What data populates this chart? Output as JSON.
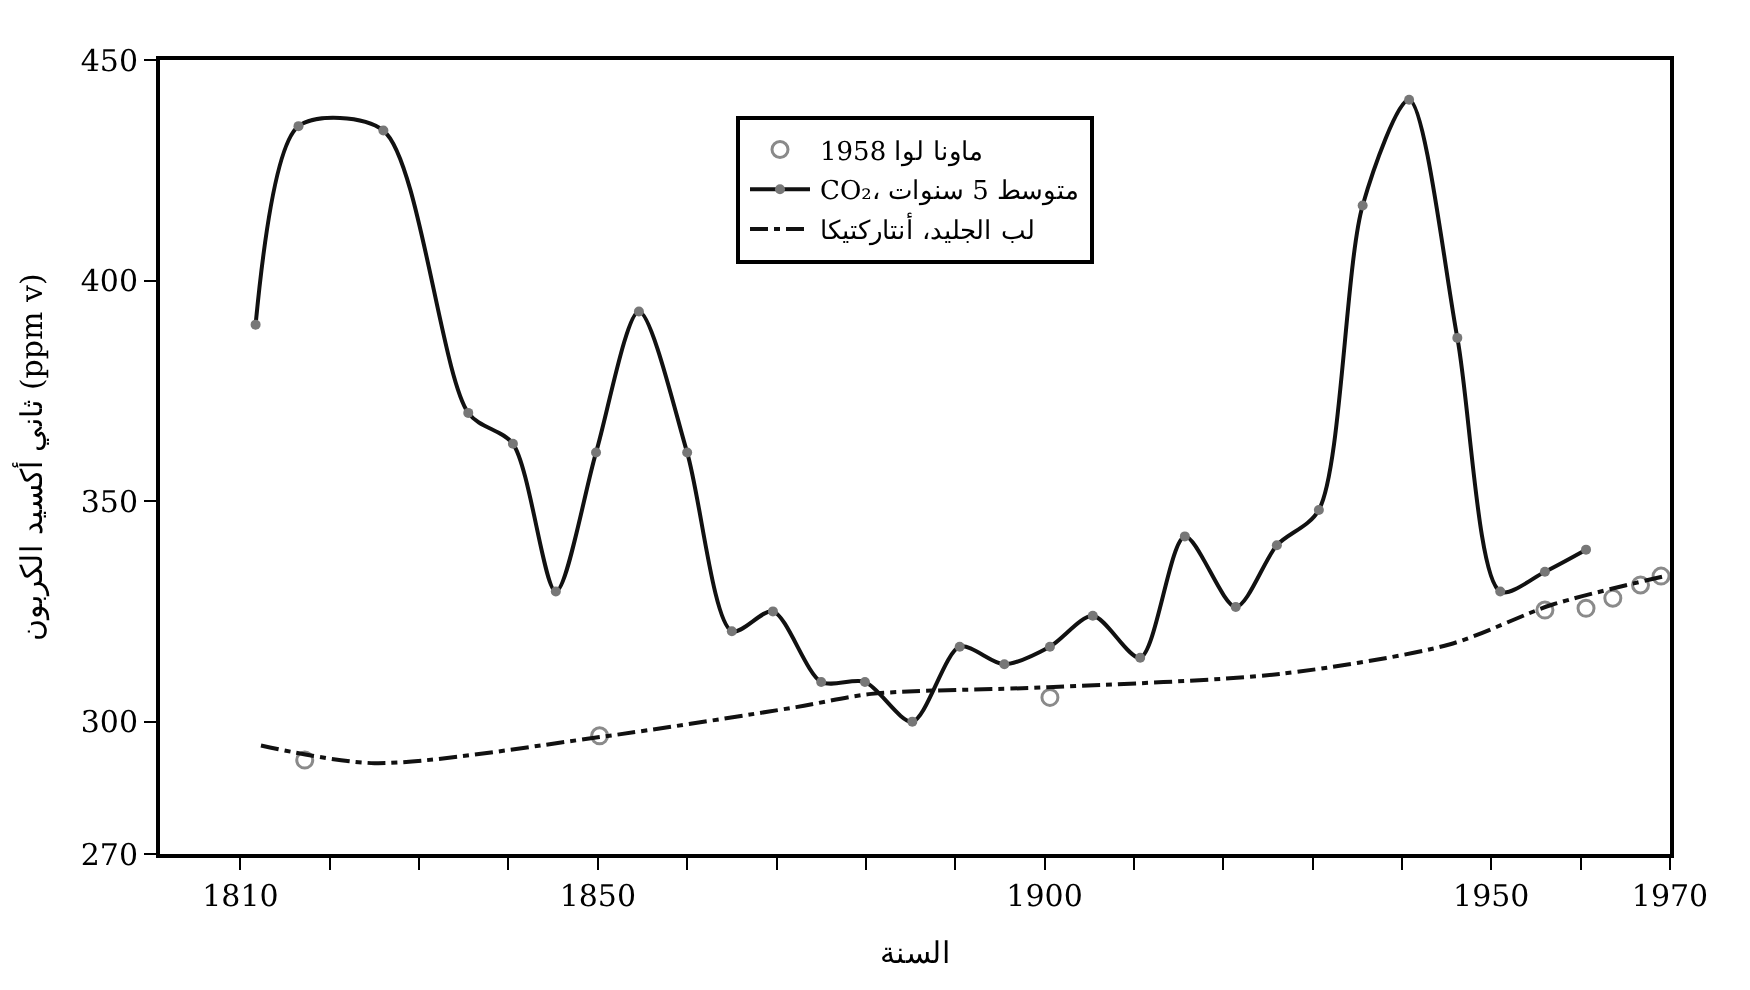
{
  "chart_data": {
    "type": "line",
    "xlabel": "السنة",
    "ylabel": "ثاني أكسيد الكربون (ppm v)",
    "xlim": [
      1801,
      1970
    ],
    "ylim": [
      270,
      450
    ],
    "xticks": [
      1810,
      {
        "value": 1820,
        "label": null
      },
      {
        "value": 1830,
        "label": null
      },
      {
        "value": 1840,
        "label": null
      },
      1850,
      {
        "value": 1860,
        "label": null
      },
      {
        "value": 1870,
        "label": null
      },
      {
        "value": 1880,
        "label": null
      },
      {
        "value": 1890,
        "label": null
      },
      1900,
      {
        "value": 1910,
        "label": null
      },
      {
        "value": 1920,
        "label": null
      },
      {
        "value": 1930,
        "label": null
      },
      {
        "value": 1940,
        "label": null
      },
      1950,
      {
        "value": 1960,
        "label": null
      },
      1970
    ],
    "yticks": [
      270,
      300,
      350,
      400,
      450
    ],
    "legend": "top",
    "series": [
      {
        "name": "ماونا لوا 1958",
        "type": "scatter",
        "marker": "circle",
        "color": "#8a8a8a",
        "x": [
          1817.2,
          1850.2,
          1900.6,
          1956,
          1960.6,
          1963.6,
          1966.7,
          1969
        ],
        "values": [
          291.3,
          296.8,
          305.5,
          325.3,
          325.7,
          328,
          331,
          333
        ]
      },
      {
        "name": "CO₂، متوسط 5 سنوات",
        "marker": "circle",
        "line_style": "solid",
        "color": "#111111",
        "x": [
          1811.7,
          1816.5,
          1826,
          1835.5,
          1840.5,
          1845.3,
          1849.8,
          1854.6,
          1860,
          1865,
          1869.6,
          1875,
          1879.9,
          1885.2,
          1890.5,
          1895.5,
          1900.6,
          1905.4,
          1910.7,
          1915.7,
          1921.4,
          1926,
          1930.7,
          1935.6,
          1940.8,
          1946.2,
          1951,
          1956,
          1960.6
        ],
        "values": [
          390,
          435,
          434,
          370,
          363,
          329.5,
          361,
          393,
          361,
          320.5,
          325,
          309,
          309,
          300,
          317,
          313,
          317,
          324,
          314.5,
          342,
          326,
          340,
          348,
          417,
          441,
          387,
          329.5,
          334,
          339
        ]
      },
      {
        "name": "لب الجليد، أنتاركتيكا",
        "marker": "none",
        "line_style": "dashdot",
        "color": "#111111",
        "x": [
          1812.3,
          1825,
          1850.2,
          1872.2,
          1880.6,
          1900.4,
          1926.3,
          1945.3,
          1956.8,
          1969.4
        ],
        "values": [
          294.6,
          290.6,
          296.5,
          303.3,
          306.3,
          307.8,
          310.8,
          317.5,
          326.5,
          333
        ]
      }
    ]
  }
}
